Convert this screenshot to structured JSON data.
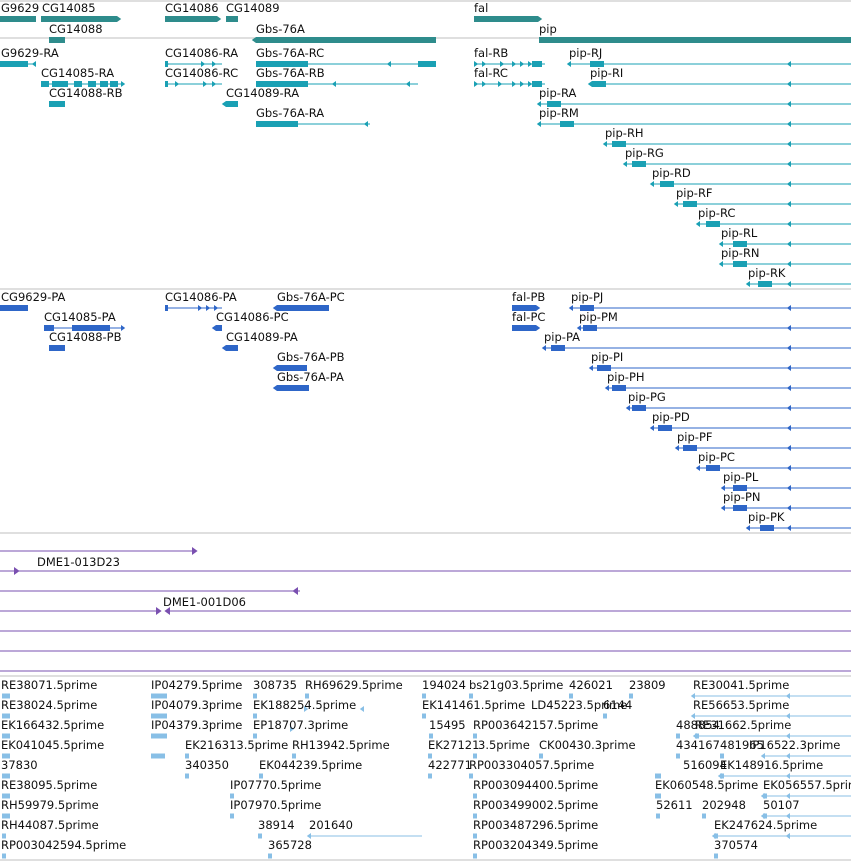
{
  "colors": {
    "gene": "#2e8c8c",
    "transcript": "#1aa0b4",
    "protein": "#2e66c8",
    "clone": "#7a50b0",
    "est": "#88bfe6",
    "divider": "#bfbfbf"
  },
  "tracks": {
    "genes": [
      {
        "label": "G9629"
      },
      {
        "label": "CG14085"
      },
      {
        "label": "CG14088"
      },
      {
        "label": "CG14086"
      },
      {
        "label": "CG14089"
      },
      {
        "label": "Gbs-76A"
      },
      {
        "label": "fal"
      },
      {
        "label": "pip"
      }
    ],
    "transcripts": [
      {
        "label": "G9629-RA"
      },
      {
        "label": "CG14085-RA"
      },
      {
        "label": "CG14088-RB"
      },
      {
        "label": "CG14086-RA"
      },
      {
        "label": "CG14086-RC"
      },
      {
        "label": "CG14089-RA"
      },
      {
        "label": "Gbs-76A-RC"
      },
      {
        "label": "Gbs-76A-RB"
      },
      {
        "label": "Gbs-76A-RA"
      },
      {
        "label": "fal-RB"
      },
      {
        "label": "fal-RC"
      },
      {
        "label": "pip-RJ"
      },
      {
        "label": "pip-RI"
      },
      {
        "label": "pip-RA"
      },
      {
        "label": "pip-RM"
      },
      {
        "label": "pip-RH"
      },
      {
        "label": "pip-RG"
      },
      {
        "label": "pip-RD"
      },
      {
        "label": "pip-RF"
      },
      {
        "label": "pip-RC"
      },
      {
        "label": "pip-RL"
      },
      {
        "label": "pip-RN"
      },
      {
        "label": "pip-RK"
      }
    ],
    "proteins": [
      {
        "label": "CG9629-PA"
      },
      {
        "label": "CG14085-PA"
      },
      {
        "label": "CG14088-PB"
      },
      {
        "label": "CG14086-PA"
      },
      {
        "label": "CG14086-PC"
      },
      {
        "label": "CG14089-PA"
      },
      {
        "label": "Gbs-76A-PC"
      },
      {
        "label": "Gbs-76A-PB"
      },
      {
        "label": "Gbs-76A-PA"
      },
      {
        "label": "fal-PB"
      },
      {
        "label": "fal-PC"
      },
      {
        "label": "pip-PJ"
      },
      {
        "label": "pip-PM"
      },
      {
        "label": "pip-PA"
      },
      {
        "label": "pip-PI"
      },
      {
        "label": "pip-PH"
      },
      {
        "label": "pip-PG"
      },
      {
        "label": "pip-PD"
      },
      {
        "label": "pip-PF"
      },
      {
        "label": "pip-PC"
      },
      {
        "label": "pip-PL"
      },
      {
        "label": "pip-PN"
      },
      {
        "label": "pip-PK"
      }
    ],
    "clones": [
      {
        "label": "DME1-013D23"
      },
      {
        "label": "DME1-001D06"
      }
    ],
    "ests": [
      {
        "label": "RE38071.5prime"
      },
      {
        "label": "IP04279.5prime"
      },
      {
        "label": "308735"
      },
      {
        "label": "RH69629.5prime"
      },
      {
        "label": "194024"
      },
      {
        "label": "bs21g03.5prime"
      },
      {
        "label": "426021"
      },
      {
        "label": "23809"
      },
      {
        "label": "RE30041.5prime"
      },
      {
        "label": "RE38024.5prime"
      },
      {
        "label": "IP04079.3prime"
      },
      {
        "label": "EK188254.5prime"
      },
      {
        "label": "EK141461.5prime"
      },
      {
        "label": "LD45223.5prime"
      },
      {
        "label": "6144"
      },
      {
        "label": "RE56653.5prime"
      },
      {
        "label": "EK166432.5prime"
      },
      {
        "label": "IP04379.3prime"
      },
      {
        "label": "EP18707.3prime"
      },
      {
        "label": "15495"
      },
      {
        "label": "RP003642157.5prime"
      },
      {
        "label": "488854"
      },
      {
        "label": "RE31662.5prime"
      },
      {
        "label": "EK041045.5prime"
      },
      {
        "label": "EK216313.5prime"
      },
      {
        "label": "RH13942.5prime"
      },
      {
        "label": "EK27121"
      },
      {
        "label": "3.5prime"
      },
      {
        "label": "CK00430.3prime"
      },
      {
        "label": "434167"
      },
      {
        "label": "481965"
      },
      {
        "label": "IP16522.3prime"
      },
      {
        "label": "37830"
      },
      {
        "label": "340350"
      },
      {
        "label": "EK044239.5prime"
      },
      {
        "label": "422771"
      },
      {
        "label": "RP003304057.5prime"
      },
      {
        "label": "516094"
      },
      {
        "label": "EK148916.5prime"
      },
      {
        "label": "RE38095.5prime"
      },
      {
        "label": "IP07770.5prime"
      },
      {
        "label": "RP003094400.5prime"
      },
      {
        "label": "EK060548.5prime"
      },
      {
        "label": "EK056557.5prime"
      },
      {
        "label": "RH59979.5prime"
      },
      {
        "label": "IP07970.5prime"
      },
      {
        "label": "RP003499002.5prime"
      },
      {
        "label": "52611"
      },
      {
        "label": "202948"
      },
      {
        "label": "50107"
      },
      {
        "label": "RH44087.5prime"
      },
      {
        "label": "38914"
      },
      {
        "label": "201640"
      },
      {
        "label": "RP003487296.5prime"
      },
      {
        "label": "EK247624.5prime"
      },
      {
        "label": "RP003042594.5prime"
      },
      {
        "label": "365728"
      },
      {
        "label": "RP003204349.5prime"
      },
      {
        "label": "370574"
      }
    ]
  }
}
